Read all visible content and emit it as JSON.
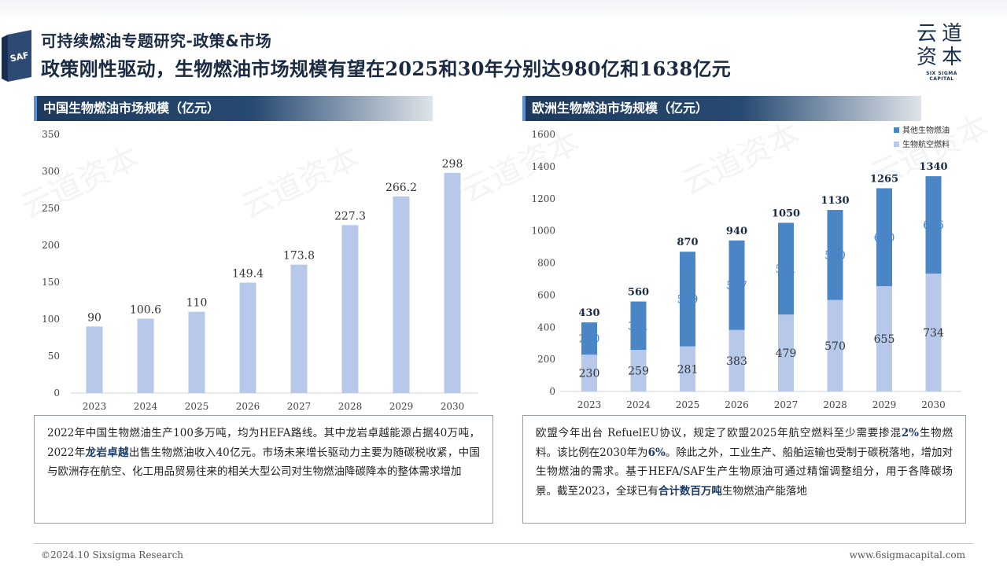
{
  "header": {
    "subtitle": "可持续燃油专题研究-政策&市场",
    "title": "政策刚性驱动，生物燃油市场规模有望在2025和30年分别达980亿和1638亿元",
    "badge": "SAF"
  },
  "logo": {
    "line1": "云道",
    "line2": "资本",
    "en": "SIX SIGMA CAPITAL"
  },
  "watermark": "云道资本",
  "panels": {
    "left_title": "中国生物燃油市场规模（亿元）",
    "right_title": "欧洲生物燃油市场规模（亿元）"
  },
  "colors": {
    "bar_light": "#b7c8ea",
    "bar_dark": "#4a86c5",
    "header_bg": "#1e3a5c",
    "label": "#333333"
  },
  "chart_data": [
    {
      "type": "bar",
      "categories": [
        "2023",
        "2024",
        "2025",
        "2026",
        "2027",
        "2028",
        "2029",
        "2030"
      ],
      "values": [
        90,
        100.6,
        110,
        149.4,
        173.8,
        227.3,
        266.2,
        298
      ],
      "value_labels": [
        "90",
        "100.6",
        "110",
        "149.4",
        "173.8",
        "227.3",
        "266.2",
        "298"
      ],
      "ylim": [
        0,
        350
      ],
      "yticks": [
        "0",
        "50",
        "100",
        "150",
        "200",
        "250",
        "300",
        "350"
      ],
      "grid": false
    },
    {
      "type": "bar",
      "stacked": true,
      "categories": [
        "2023",
        "2024",
        "2025",
        "2026",
        "2027",
        "2028",
        "2029",
        "2030"
      ],
      "series": [
        {
          "name": "生物航空燃料",
          "values": [
            230,
            259,
            281,
            383,
            479,
            570,
            655,
            734
          ]
        },
        {
          "name": "其他生物燃油",
          "values": [
            200,
            301,
            589,
            557,
            571,
            560,
            610,
            606
          ]
        }
      ],
      "totals": [
        430,
        560,
        870,
        940,
        1050,
        1130,
        1265,
        1340
      ],
      "ylim": [
        0,
        1600
      ],
      "yticks": [
        "0",
        "200",
        "400",
        "600",
        "800",
        "1000",
        "1200",
        "1400",
        "1600"
      ],
      "legend": {
        "position": "top-right",
        "items": [
          "其他生物燃油",
          "生物航空燃料"
        ]
      },
      "grid": false
    }
  ],
  "text_left": {
    "p1": "2022年中国生物燃油生产100多万吨，均为HEFA路线。其中龙岩卓越能源占据40万吨，2022年",
    "hl1": "龙岩卓越",
    "p2": "出售生物燃油收入40亿元。市场未来增长驱动力主要为随碳税收紧，中国与欧洲存在航空、化工用品贸易往来的相关大型公司对生物燃油降碳降本的整体需求增加"
  },
  "text_right": {
    "p1": "欧盟今年出台 RefuelEU协议，规定了欧盟2025年航空燃料至少需要掺混",
    "hl1": "2%",
    "p2": "生物燃料。该比例在2030年为",
    "hl2": "6%",
    "p3": "。除此之外，工业生产、船舶运输也受制于碳税落地，增加对生物燃油的需求。基于HEFA/SAF生产生物原油可通过精馏调整组分，用于各降碳场景。截至2023，全球已有",
    "hl3": "合计数百万吨",
    "p4": "生物燃油产能落地"
  },
  "footer": {
    "left": "©2024.10 Sixsigma Research",
    "right": "www.6sigmacapital.com"
  }
}
